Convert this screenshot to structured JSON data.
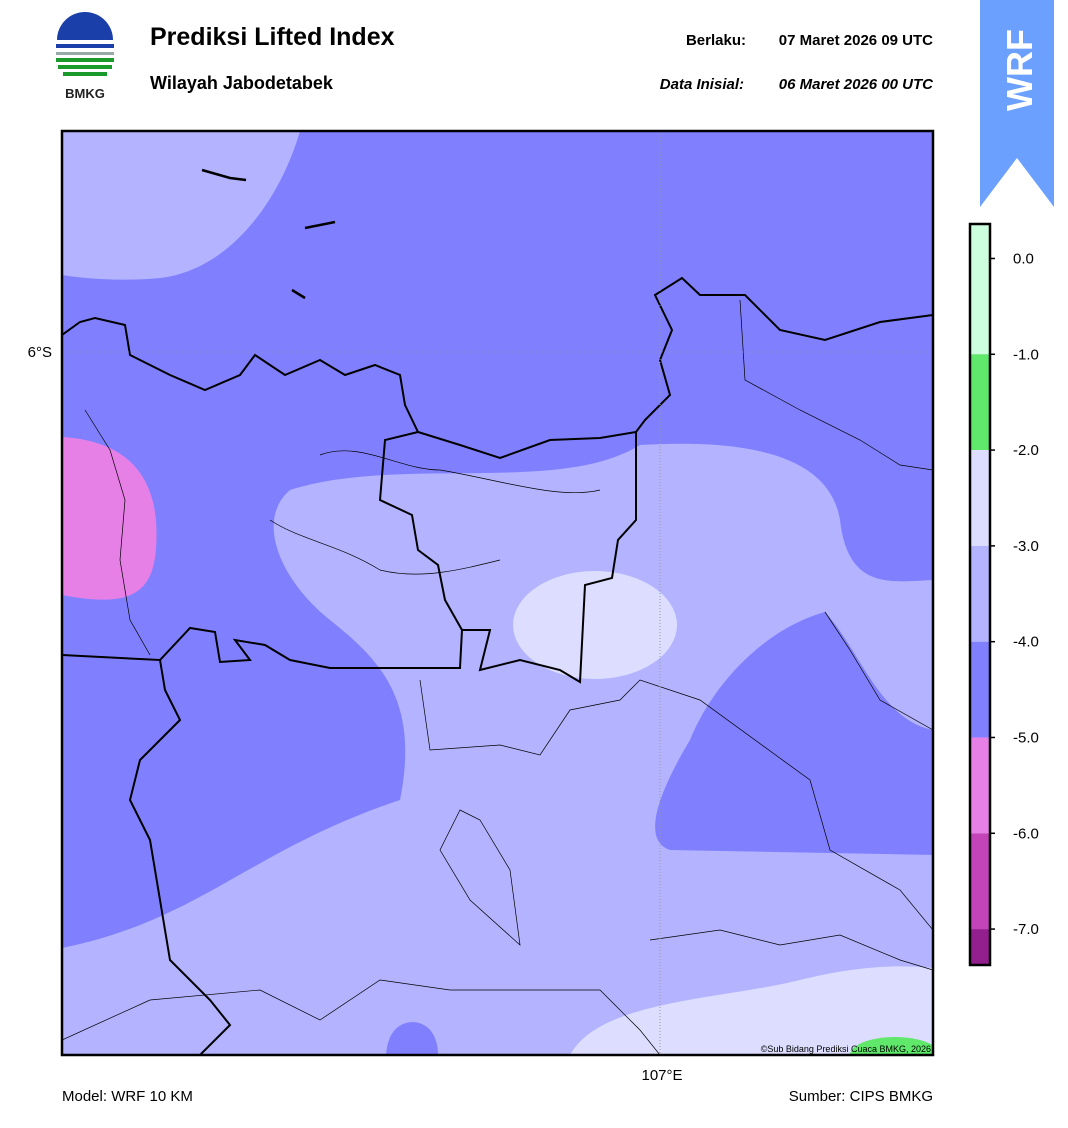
{
  "header": {
    "title": "Prediksi Lifted Index",
    "subtitle": "Wilayah Jabodetabek",
    "valid_label": "Berlaku:",
    "valid_time": "07 Maret 2026 09 UTC",
    "init_label": "Data Inisial:",
    "init_time": "06 Maret 2026 00 UTC",
    "logo_text": "BMKG",
    "banner": "WRF"
  },
  "map": {
    "lat_label": "6°S",
    "lon_label": "107°E",
    "credit": "©Sub Bidang Prediksi Cuaca BMKG, 2026"
  },
  "colorbar": {
    "lim": [
      -7.375,
      0.36
    ],
    "ticks": [
      {
        "value": 0,
        "label": "0.0"
      },
      {
        "value": -1,
        "label": "-1.0"
      },
      {
        "value": -2,
        "label": "-2.0"
      },
      {
        "value": -3,
        "label": "-3.0"
      },
      {
        "value": -4,
        "label": "-4.0"
      },
      {
        "value": -5,
        "label": "-5.0"
      },
      {
        "value": -6,
        "label": "-6.0"
      },
      {
        "value": -7,
        "label": "-7.0"
      }
    ],
    "bands": [
      {
        "min": -1,
        "max": 0.36,
        "color": "#ccffdd"
      },
      {
        "min": -2,
        "max": -1,
        "color": "#5fe86a"
      },
      {
        "min": -3,
        "max": -2,
        "color": "#ddddff"
      },
      {
        "min": -4,
        "max": -3,
        "color": "#b3b3ff"
      },
      {
        "min": -5,
        "max": -4,
        "color": "#8080ff"
      },
      {
        "min": -6,
        "max": -5,
        "color": "#e680e6"
      },
      {
        "min": -7,
        "max": -6,
        "color": "#c244b8"
      },
      {
        "min": -7.375,
        "max": -7,
        "color": "#931e8e"
      }
    ]
  },
  "footer": {
    "model": "Model: WRF 10 KM",
    "source": "Sumber: CIPS BMKG"
  }
}
